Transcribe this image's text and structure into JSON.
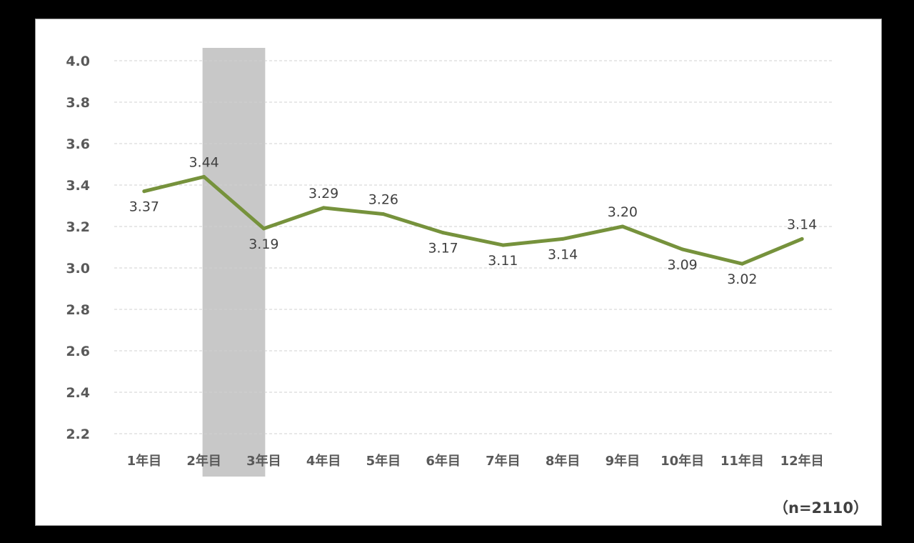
{
  "chart_data": {
    "type": "line",
    "categories": [
      "1年目",
      "2年目",
      "3年目",
      "4年目",
      "5年目",
      "6年目",
      "7年目",
      "8年目",
      "9年目",
      "10年目",
      "11年目",
      "12年目"
    ],
    "series": [
      {
        "values": [
          3.37,
          3.44,
          3.19,
          3.29,
          3.26,
          3.17,
          3.11,
          3.14,
          3.2,
          3.09,
          3.02,
          3.14
        ]
      }
    ],
    "data_labels": [
      "3.37",
      "3.44",
      "3.19",
      "3.29",
      "3.26",
      "3.17",
      "3.11",
      "3.14",
      "3.20",
      "3.09",
      "3.02",
      "3.14"
    ],
    "y_ticks": [
      "2.2",
      "2.4",
      "2.6",
      "2.8",
      "3.0",
      "3.2",
      "3.4",
      "3.6",
      "3.8",
      "4.0"
    ],
    "ylim": [
      2.2,
      4.0
    ],
    "grid": true,
    "highlight_categories": [
      "2年目",
      "3年目"
    ],
    "colors": {
      "line": "#76923c",
      "highlight": "#c8c8c8",
      "grid": "#d0d0d0"
    },
    "note": "（n=2110）"
  }
}
